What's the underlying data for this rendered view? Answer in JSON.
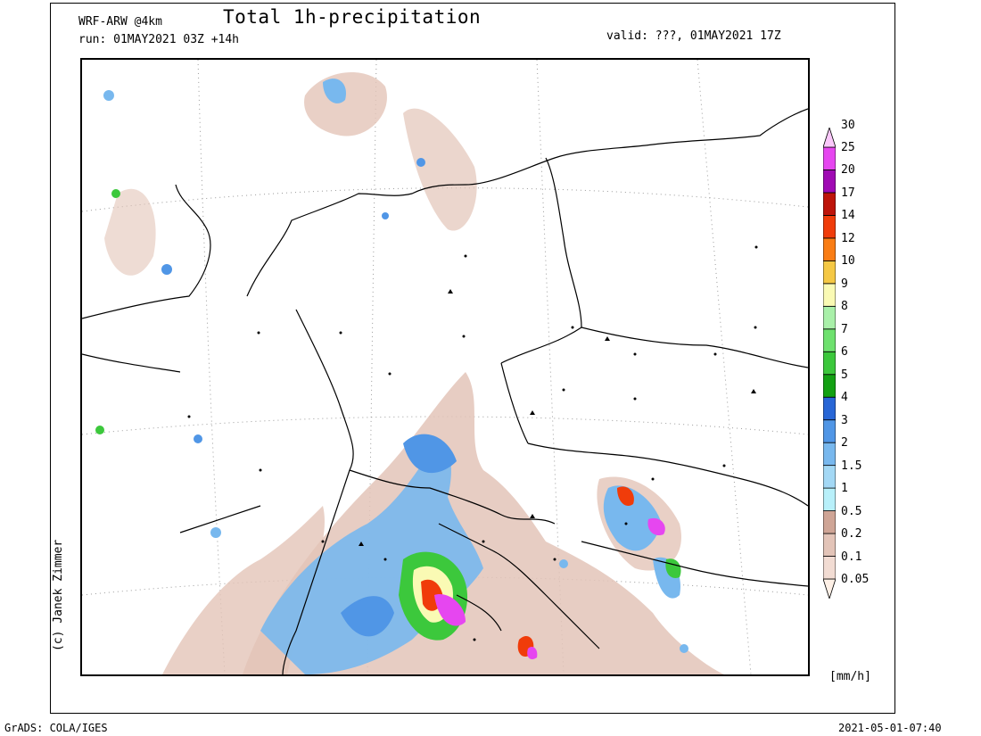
{
  "header": {
    "model": "WRF-ARW @4km",
    "run": "run: 01MAY2021 03Z +14h",
    "title": "Total 1h-precipitation",
    "valid": "valid: ???, 01MAY2021 17Z"
  },
  "copyright": "(c) Janek Zimmer",
  "footer": {
    "left": "GrADS: COLA/IGES",
    "right": "2021-05-01-07:40"
  },
  "colorbar": {
    "unit": "[mm/h]",
    "levels": [
      "0.05",
      "0.1",
      "0.2",
      "0.5",
      "1",
      "1.5",
      "2",
      "3",
      "4",
      "5",
      "6",
      "7",
      "8",
      "9",
      "10",
      "12",
      "14",
      "17",
      "20",
      "25",
      "30"
    ],
    "colors": [
      "#fef0e6",
      "#f2dcd3",
      "#e3c4b8",
      "#cfa596",
      "#b8f0fa",
      "#a3d8f5",
      "#78b8ee",
      "#5096e6",
      "#2866d6",
      "#13a113",
      "#3cc83c",
      "#6ee16e",
      "#a9f0a9",
      "#fafab4",
      "#f5c844",
      "#fa7d14",
      "#f03c0a",
      "#be140a",
      "#a00ab4",
      "#e646f0",
      "#fac8fa"
    ]
  },
  "map": {
    "precip_colors": {
      "trace": "#e8cfc4",
      "light": "#cfa596",
      "mod": "#78b8ee",
      "heavy": "#2866d6",
      "green": "#3cc83c",
      "yellow": "#fafab4",
      "red": "#f03c0a",
      "magenta": "#e646f0"
    }
  }
}
